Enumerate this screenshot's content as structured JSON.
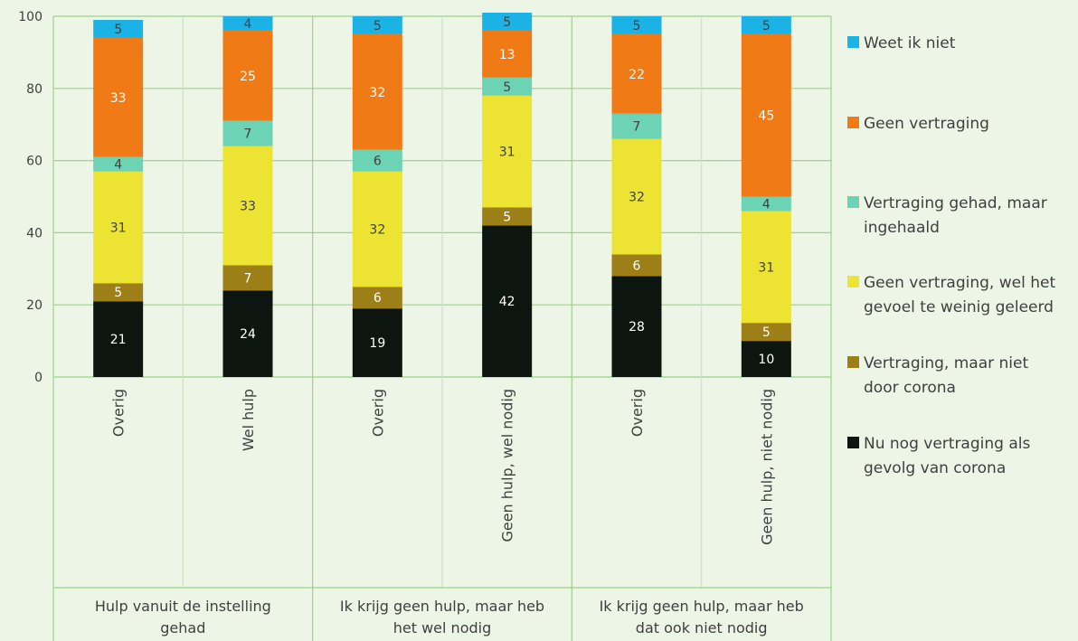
{
  "chart_data": {
    "type": "bar",
    "stacked": true,
    "ylim": [
      0,
      100
    ],
    "yticks": [
      0,
      20,
      40,
      60,
      80,
      100
    ],
    "grid": true,
    "legend_position": "right",
    "groups": [
      {
        "label": "Hulp vanuit de instelling gehad",
        "lines": [
          "Hulp vanuit de instelling",
          "gehad"
        ],
        "categories": [
          "Overig",
          "Wel hulp"
        ]
      },
      {
        "label": "Ik krijg geen hulp, maar heb het wel nodig",
        "lines": [
          "Ik krijg geen hulp, maar heb",
          "het wel nodig"
        ],
        "categories": [
          "Overig",
          "Geen hulp, wel nodig"
        ]
      },
      {
        "label": "Ik krijg geen hulp, maar heb dat ook niet nodig",
        "lines": [
          "Ik krijg geen hulp, maar heb",
          "dat ook niet nodig"
        ],
        "categories": [
          "Overig",
          "Geen hulp, niet nodig"
        ]
      }
    ],
    "categories": [
      "Overig",
      "Wel hulp",
      "Overig",
      "Geen hulp, wel nodig",
      "Overig",
      "Geen hulp, niet nodig"
    ],
    "series": [
      {
        "name": "Nu nog vertraging als gevolg van corona",
        "lines": [
          "Nu nog vertraging als",
          "gevolg van corona"
        ],
        "color": "#0d1510",
        "label_color": "#ffffff",
        "values": [
          21,
          24,
          19,
          42,
          28,
          10
        ]
      },
      {
        "name": "Vertraging, maar niet door corona",
        "lines": [
          "Vertraging, maar niet",
          "door corona"
        ],
        "color": "#9c7f16",
        "label_color": "#ffffff",
        "values": [
          5,
          7,
          6,
          5,
          6,
          5
        ]
      },
      {
        "name": "Geen vertraging, wel het gevoel te weinig geleerd",
        "lines": [
          "Geen vertraging, wel het",
          "gevoel te weinig geleerd"
        ],
        "color": "#ece332",
        "label_color": "#404040",
        "values": [
          31,
          33,
          32,
          31,
          32,
          31
        ]
      },
      {
        "name": "Vertraging gehad, maar ingehaald",
        "lines": [
          "Vertraging gehad, maar",
          "ingehaald"
        ],
        "color": "#6dd3b5",
        "label_color": "#404040",
        "values": [
          4,
          7,
          6,
          5,
          7,
          4
        ]
      },
      {
        "name": "Geen vertraging",
        "lines": [
          "Geen vertraging"
        ],
        "color": "#f07b16",
        "label_color": "#ffffff",
        "values": [
          33,
          25,
          32,
          13,
          22,
          45
        ]
      },
      {
        "name": "Weet ik niet",
        "lines": [
          "Weet ik niet"
        ],
        "color": "#1bb3e6",
        "label_color": "#404040",
        "values": [
          5,
          4,
          5,
          5,
          5,
          5
        ]
      }
    ]
  }
}
